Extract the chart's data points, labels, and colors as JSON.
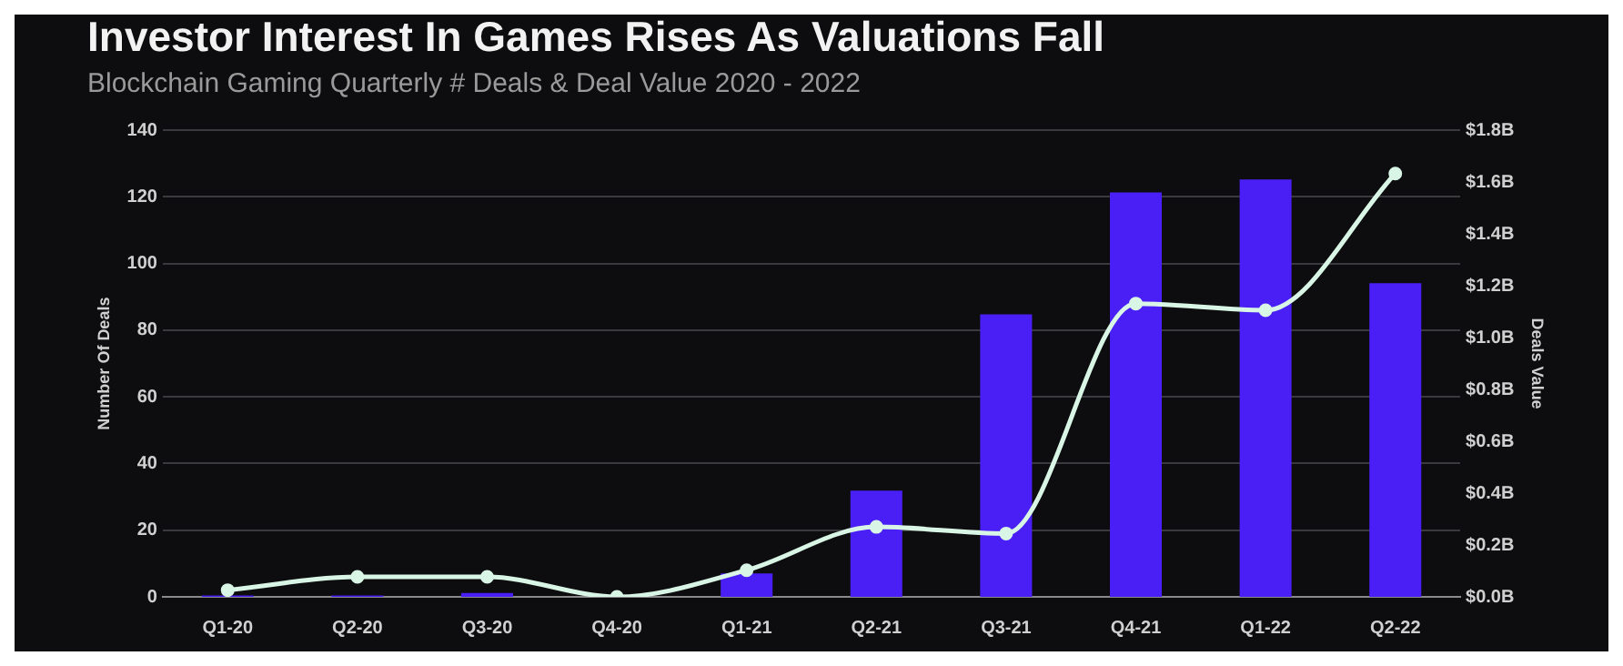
{
  "chart_data": {
    "type": "bar",
    "title": "Investor Interest In Games Rises As Valuations Fall",
    "subtitle": "Blockchain Gaming Quarterly # Deals & Deal Value 2020 - 2022",
    "categories": [
      "Q1-20",
      "Q2-20",
      "Q3-20",
      "Q4-20",
      "Q1-21",
      "Q2-21",
      "Q3-21",
      "Q4-21",
      "Q1-22",
      "Q2-22"
    ],
    "series": [
      {
        "axis": "y2",
        "color": "#4a1ff5",
        "values": [
          0.005,
          0.005,
          0.015,
          0,
          0.09,
          0.41,
          1.09,
          1.56,
          1.61,
          1.21
        ]
      },
      {
        "type": "line",
        "axis": "y",
        "color": "#d8f5e6",
        "values": [
          2,
          6,
          6,
          0,
          8,
          21,
          19,
          88,
          86,
          127
        ]
      }
    ],
    "ylabel": "Number Of Deals",
    "y2label": "Deals Value",
    "ylim": [
      0,
      140
    ],
    "yticks": [
      0,
      20,
      40,
      60,
      80,
      100,
      120,
      140
    ],
    "y2lim": [
      0,
      1.8
    ],
    "y2ticks": [
      {
        "value": 0,
        "label": "$0.0B"
      },
      {
        "value": 0.2,
        "label": "$0.2B"
      },
      {
        "value": 0.4,
        "label": "$0.4B"
      },
      {
        "value": 0.6,
        "label": "$0.6B"
      },
      {
        "value": 0.8,
        "label": "$0.8B"
      },
      {
        "value": 1.0,
        "label": "$1.0B"
      },
      {
        "value": 1.2,
        "label": "$1.2B"
      },
      {
        "value": 1.4,
        "label": "$1.4B"
      },
      {
        "value": 1.6,
        "label": "$1.6B"
      },
      {
        "value": 1.8,
        "label": "$1.8B"
      }
    ],
    "grid": "y",
    "legend": false,
    "marker": "circle"
  }
}
